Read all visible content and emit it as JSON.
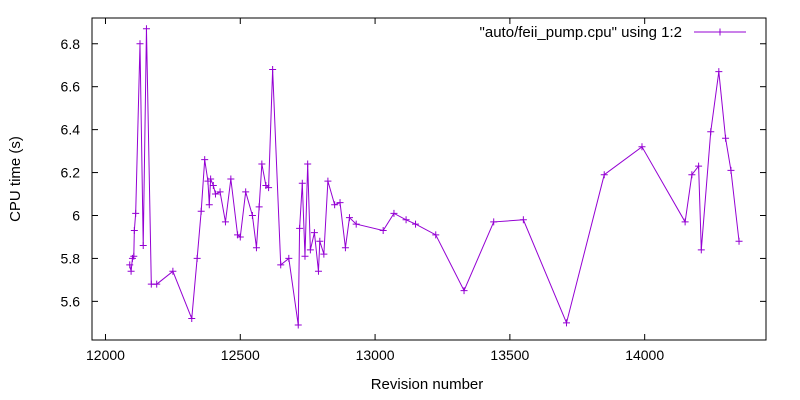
{
  "chart_data": {
    "type": "line",
    "xlabel": "Revision number",
    "ylabel": "CPU time (s)",
    "xlim": [
      11950,
      14450
    ],
    "ylim": [
      5.42,
      6.92
    ],
    "xticks": [
      12000,
      12500,
      13000,
      13500,
      14000
    ],
    "yticks": [
      5.6,
      5.8,
      6,
      6.2,
      6.4,
      6.6,
      6.8
    ],
    "xtick_labels": [
      "12000",
      "12500",
      "13000",
      "13500",
      "14000"
    ],
    "ytick_labels": [
      "5.6",
      "5.8",
      "6",
      "6.2",
      "6.4",
      "6.6",
      "6.8"
    ],
    "grid": false,
    "legend_position": "top-right",
    "series": [
      {
        "name": "\"auto/feii_pump.cpu\" using 1:2",
        "color": "#9400d3",
        "marker": "plus",
        "points": [
          [
            12090,
            5.77
          ],
          [
            12095,
            5.74
          ],
          [
            12100,
            5.8
          ],
          [
            12105,
            5.81
          ],
          [
            12107,
            5.93
          ],
          [
            12112,
            6.01
          ],
          [
            12128,
            6.8
          ],
          [
            12140,
            5.86
          ],
          [
            12152,
            6.87
          ],
          [
            12170,
            5.68
          ],
          [
            12190,
            5.68
          ],
          [
            12250,
            5.74
          ],
          [
            12320,
            5.52
          ],
          [
            12340,
            5.8
          ],
          [
            12355,
            6.02
          ],
          [
            12368,
            6.26
          ],
          [
            12380,
            6.16
          ],
          [
            12385,
            6.05
          ],
          [
            12390,
            6.17
          ],
          [
            12400,
            6.14
          ],
          [
            12408,
            6.1
          ],
          [
            12425,
            6.11
          ],
          [
            12445,
            5.97
          ],
          [
            12465,
            6.17
          ],
          [
            12490,
            5.91
          ],
          [
            12500,
            5.9
          ],
          [
            12520,
            6.11
          ],
          [
            12545,
            6.0
          ],
          [
            12560,
            5.85
          ],
          [
            12570,
            6.04
          ],
          [
            12580,
            6.24
          ],
          [
            12595,
            6.14
          ],
          [
            12605,
            6.13
          ],
          [
            12620,
            6.68
          ],
          [
            12650,
            5.77
          ],
          [
            12680,
            5.8
          ],
          [
            12715,
            5.49
          ],
          [
            12720,
            5.94
          ],
          [
            12730,
            6.15
          ],
          [
            12740,
            5.81
          ],
          [
            12750,
            6.24
          ],
          [
            12760,
            5.84
          ],
          [
            12775,
            5.92
          ],
          [
            12790,
            5.74
          ],
          [
            12795,
            5.88
          ],
          [
            12810,
            5.82
          ],
          [
            12825,
            6.16
          ],
          [
            12850,
            6.05
          ],
          [
            12870,
            6.06
          ],
          [
            12890,
            5.85
          ],
          [
            12905,
            5.99
          ],
          [
            12930,
            5.96
          ],
          [
            13030,
            5.93
          ],
          [
            13070,
            6.01
          ],
          [
            13115,
            5.98
          ],
          [
            13150,
            5.96
          ],
          [
            13225,
            5.91
          ],
          [
            13330,
            5.65
          ],
          [
            13440,
            5.97
          ],
          [
            13550,
            5.98
          ],
          [
            13710,
            5.5
          ],
          [
            13850,
            6.19
          ],
          [
            13990,
            6.32
          ],
          [
            14150,
            5.97
          ],
          [
            14175,
            6.19
          ],
          [
            14200,
            6.23
          ],
          [
            14210,
            5.84
          ],
          [
            14245,
            6.39
          ],
          [
            14275,
            6.67
          ],
          [
            14300,
            6.36
          ],
          [
            14320,
            6.21
          ],
          [
            14350,
            5.88
          ]
        ]
      }
    ]
  }
}
